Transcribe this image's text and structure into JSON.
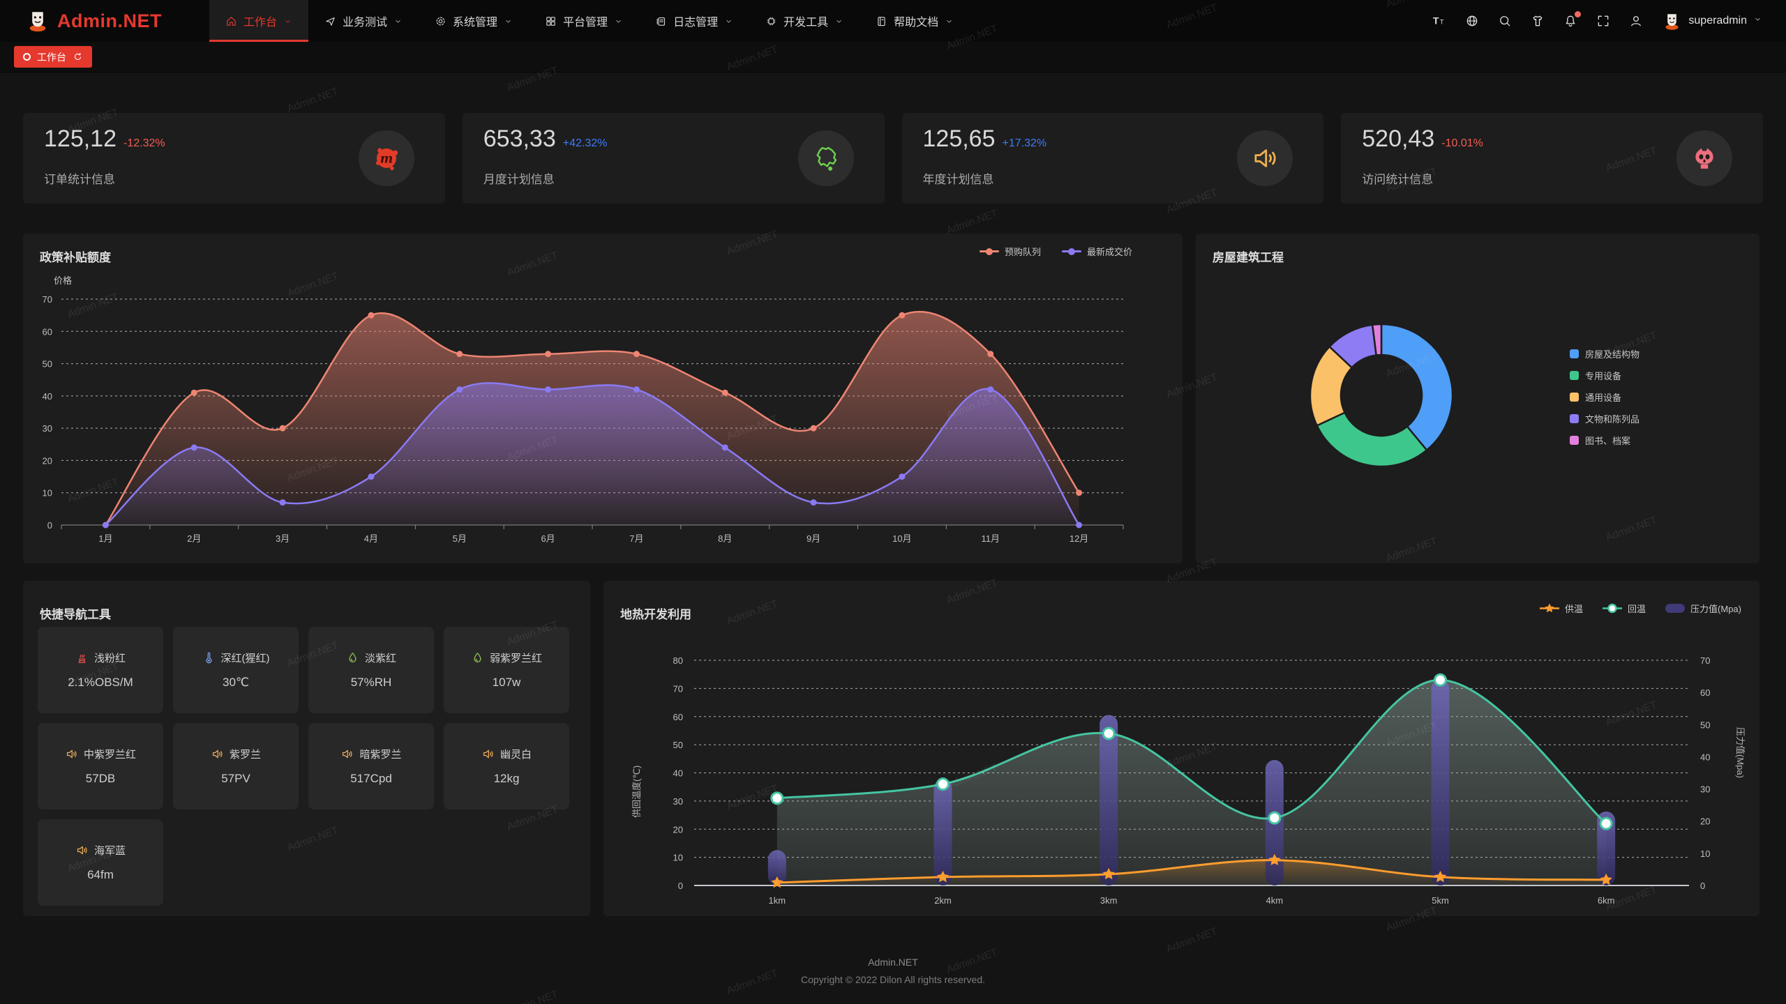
{
  "colors": {
    "accent": "#e5392e",
    "delta_up_blue": "#3e7bfa",
    "delta_down_red": "#f25d55",
    "card_bg": "#1d1d1d",
    "navbar_bg": "#090909"
  },
  "watermark_text": "Admin.NET",
  "navbar": {
    "logo_text": "Admin.NET",
    "menu": [
      {
        "label": "工作台",
        "icon": "home-icon",
        "active": true
      },
      {
        "label": "业务测试",
        "icon": "send-icon",
        "active": false
      },
      {
        "label": "系统管理",
        "icon": "gear-icon",
        "active": false
      },
      {
        "label": "平台管理",
        "icon": "grid-icon",
        "active": false
      },
      {
        "label": "日志管理",
        "icon": "log-icon",
        "active": false
      },
      {
        "label": "开发工具",
        "icon": "chip-icon",
        "active": false
      },
      {
        "label": "帮助文档",
        "icon": "book-icon",
        "active": false
      }
    ],
    "actions": [
      {
        "icon": "font-size-icon"
      },
      {
        "icon": "language-icon"
      },
      {
        "icon": "search-icon"
      },
      {
        "icon": "theme-icon"
      },
      {
        "icon": "bell-icon",
        "badge": true
      },
      {
        "icon": "fullscreen-icon"
      },
      {
        "icon": "user-icon"
      }
    ],
    "username": "superadmin"
  },
  "tabbar": {
    "tabs": [
      {
        "label": "工作台",
        "active": true
      }
    ]
  },
  "stat_cards": [
    {
      "value": "125,12",
      "delta": "-12.32%",
      "trend": "down",
      "label": "订单统计信息",
      "icon": "meetup-icon",
      "icon_color": "#e23c28"
    },
    {
      "value": "653,33",
      "delta": "+42.32%",
      "trend": "up",
      "label": "月度计划信息",
      "icon": "china-map-icon",
      "icon_color": "#6fcf4e"
    },
    {
      "value": "125,65",
      "delta": "+17.32%",
      "trend": "up",
      "label": "年度计划信息",
      "icon": "speaker-icon",
      "icon_color": "#f0b24f"
    },
    {
      "value": "520,43",
      "delta": "-10.01%",
      "trend": "down",
      "label": "访问统计信息",
      "icon": "octocat-icon",
      "icon_color": "#ee6e7e"
    }
  ],
  "quick_nav": {
    "title": "快捷导航工具",
    "items": [
      {
        "label": "浅粉红",
        "value": "2.1%OBS/M",
        "icon": "kiln-icon",
        "icon_color": "#e8504a"
      },
      {
        "label": "深红(猩红)",
        "value": "30℃",
        "icon": "thermometer-icon",
        "icon_color": "#7ea6f0"
      },
      {
        "label": "淡紫红",
        "value": "57%RH",
        "icon": "droplet-icon",
        "icon_color": "#96c655"
      },
      {
        "label": "弱紫罗兰红",
        "value": "107w",
        "icon": "droplet-icon",
        "icon_color": "#96c655"
      },
      {
        "label": "中紫罗兰红",
        "value": "57DB",
        "icon": "speaker-icon",
        "icon_color": "#efad59"
      },
      {
        "label": "紫罗兰",
        "value": "57PV",
        "icon": "speaker-icon",
        "icon_color": "#efad59"
      },
      {
        "label": "暗紫罗兰",
        "value": "517Cpd",
        "icon": "speaker-icon",
        "icon_color": "#efad59"
      },
      {
        "label": "幽灵白",
        "value": "12kg",
        "icon": "speaker-icon",
        "icon_color": "#efad59"
      },
      {
        "label": "海军蓝",
        "value": "64fm",
        "icon": "speaker-icon",
        "icon_color": "#efad59"
      }
    ]
  },
  "footer": {
    "line1": "Admin.NET",
    "line2": "Copyright © 2022 Dilon All rights reserved."
  },
  "chart_data": [
    {
      "type": "area",
      "title": "政策补贴额度",
      "ylabel": "价格",
      "ylim": [
        0,
        70
      ],
      "ytick_step": 10,
      "grid": "dashed",
      "legend_position": "top-right",
      "categories": [
        "1月",
        "2月",
        "3月",
        "4月",
        "5月",
        "6月",
        "7月",
        "8月",
        "9月",
        "10月",
        "11月",
        "12月"
      ],
      "series": [
        {
          "name": "预购队列",
          "color": "#ee8573",
          "values": [
            0,
            41,
            30,
            65,
            53,
            53,
            53,
            41,
            30,
            65,
            53,
            10
          ]
        },
        {
          "name": "最新成交价",
          "color": "#8a7af2",
          "values": [
            0,
            24,
            7,
            15,
            42,
            42,
            42,
            24,
            7,
            15,
            42,
            0
          ]
        }
      ]
    },
    {
      "type": "pie",
      "title": "房屋建筑工程",
      "inner_radius_ratio": 0.57,
      "legend_position": "right",
      "slices": [
        {
          "label": "房屋及结构物",
          "value": 39,
          "color": "#4f9ef7"
        },
        {
          "label": "专用设备",
          "value": 29,
          "color": "#3ec78c"
        },
        {
          "label": "通用设备",
          "value": 19,
          "color": "#fbc169"
        },
        {
          "label": "文物和陈列品",
          "value": 11,
          "color": "#8d7cf3"
        },
        {
          "label": "图书、档案",
          "value": 2,
          "color": "#e280de"
        }
      ]
    },
    {
      "type": "line+bar",
      "title": "地热开发利用",
      "categories": [
        "1km",
        "2km",
        "3km",
        "4km",
        "5km",
        "6km"
      ],
      "ylabel_left": "供回温度(℃)",
      "ylabel_right": "压力值(Mpa)",
      "ylim_left": [
        0,
        80
      ],
      "ylim_right": [
        0,
        70
      ],
      "ytick_step": 10,
      "grid": "dashed",
      "legend_position": "top-right",
      "series": [
        {
          "name": "供温",
          "type": "line",
          "axis": "left",
          "marker": "star",
          "color": "#ff9d2e",
          "values": [
            1,
            3,
            4,
            9,
            3,
            2
          ]
        },
        {
          "name": "回温",
          "type": "line",
          "axis": "left",
          "marker": "circle",
          "color": "#45c5a2",
          "values": [
            31,
            36,
            54,
            24,
            73,
            22
          ]
        },
        {
          "name": "压力值(Mpa)",
          "type": "bar",
          "axis": "right",
          "color": "#474086",
          "values": [
            11,
            33,
            53,
            39,
            64,
            23
          ]
        }
      ]
    }
  ]
}
